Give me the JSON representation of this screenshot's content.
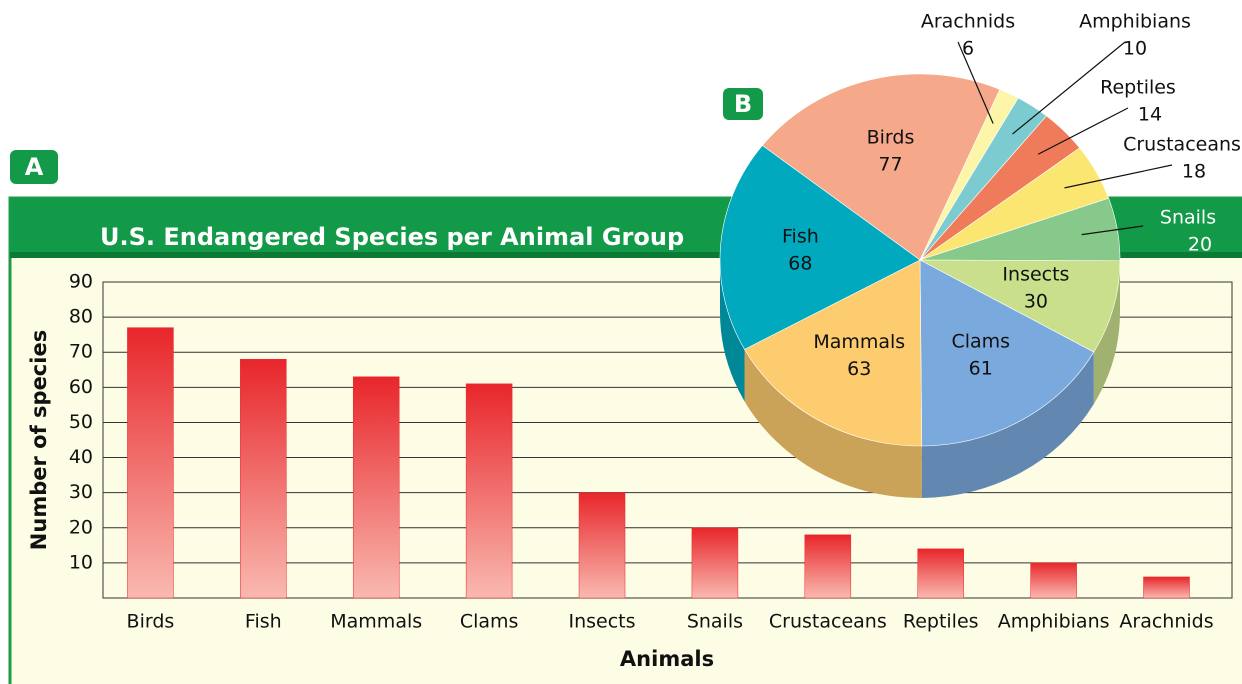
{
  "chart_data": [
    {
      "type": "bar",
      "panel_label": "A",
      "title": "U.S. Endangered Species per Animal Group",
      "x_label": "Animals",
      "y_label": "Number of species",
      "categories": [
        "Birds",
        "Fish",
        "Mammals",
        "Clams",
        "Insects",
        "Snails",
        "Crustaceans",
        "Reptiles",
        "Amphibians",
        "Arachnids"
      ],
      "values": [
        77,
        68,
        63,
        61,
        30,
        20,
        18,
        14,
        10,
        6
      ],
      "color": "#e8262b",
      "ylim": [
        0,
        90
      ],
      "yticks": [
        10,
        20,
        30,
        40,
        50,
        60,
        70,
        80,
        90
      ],
      "grid": true
    },
    {
      "type": "pie",
      "panel_label": "B",
      "categories": [
        "Birds",
        "Arachnids",
        "Amphibians",
        "Reptiles",
        "Crustaceans",
        "Snails",
        "Insects",
        "Clams",
        "Mammals",
        "Fish"
      ],
      "values": [
        77,
        6,
        10,
        14,
        18,
        20,
        30,
        61,
        63,
        68
      ],
      "colors": [
        "#f5a98a",
        "#fdf5a8",
        "#7ccbd1",
        "#ef7b5b",
        "#fce672",
        "#86c98a",
        "#c9df8c",
        "#7aaadd",
        "#fccc6f",
        "#00a9be"
      ]
    }
  ]
}
